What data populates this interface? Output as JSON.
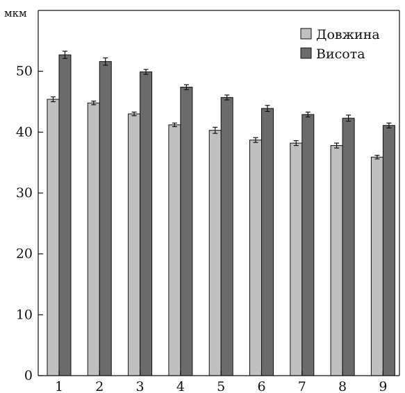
{
  "chart_data": {
    "type": "bar",
    "title": "",
    "xlabel": "",
    "ylabel": "мкм",
    "categories": [
      "1",
      "2",
      "3",
      "4",
      "5",
      "6",
      "7",
      "8",
      "9"
    ],
    "ylim": [
      0,
      60
    ],
    "yticks": [
      0,
      10,
      20,
      30,
      40,
      50
    ],
    "grid": false,
    "legend_position": "top-right",
    "series": [
      {
        "name": "Довжина",
        "color": "#c0c0c0",
        "values": [
          45.4,
          44.8,
          43.0,
          41.2,
          40.3,
          38.7,
          38.2,
          37.8,
          35.9
        ],
        "errors": [
          0.4,
          0.3,
          0.3,
          0.3,
          0.5,
          0.4,
          0.4,
          0.4,
          0.3
        ]
      },
      {
        "name": "Висота",
        "color": "#6b6b6b",
        "values": [
          52.7,
          51.6,
          49.9,
          47.4,
          45.7,
          43.9,
          42.9,
          42.3,
          41.1
        ],
        "errors": [
          0.6,
          0.6,
          0.4,
          0.4,
          0.4,
          0.5,
          0.4,
          0.5,
          0.4
        ]
      }
    ]
  }
}
